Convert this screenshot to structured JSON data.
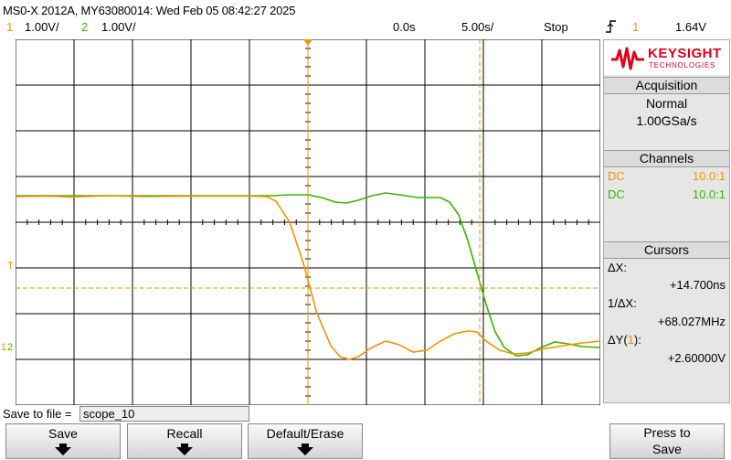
{
  "header": {
    "title": "MS0-X 2012A, MY63080014: Wed Feb 05 08:42:27 2025",
    "ch1_num": "1",
    "ch1_scale": "1.00V/",
    "ch2_num": "2",
    "ch2_scale": "1.00V/",
    "time_delay": "0.0s",
    "time_scale": "5.00s/",
    "run_state": "Stop",
    "trigger_icon": "trigger-edge-icon",
    "trigger_ch": "1",
    "trigger_level": "1.64V"
  },
  "colors": {
    "ch1": "#f29400",
    "ch2": "#3cb400",
    "grid": "#000000"
  },
  "markers": {
    "trigger_level": "T",
    "ch1_ground": "1",
    "ch2_ground": "2"
  },
  "side_panel": {
    "logo_name": "KEYSIGHT",
    "logo_sub": "TECHNOLOGIES",
    "acquisition_title": "Acquisition",
    "acquisition_mode": "Normal",
    "acquisition_rate": "1.00GSa/s",
    "channels_title": "Channels",
    "channels": [
      {
        "coupling": "DC",
        "probe": "10.0:1"
      },
      {
        "coupling": "DC",
        "probe": "10.0:1"
      }
    ],
    "cursors_title": "Cursors",
    "dx_label": "ΔX:",
    "dx_value": "+14.700ns",
    "inv_dx_label": "1/ΔX:",
    "inv_dx_value": "+68.027MHz",
    "dy_label_pre": "ΔY(",
    "dy_label_ch": "1",
    "dy_label_post": "):",
    "dy_value": "+2.60000V"
  },
  "save": {
    "label": "Save to file =",
    "filename": "scope_10"
  },
  "softkeys": {
    "save": "Save",
    "recall": "Recall",
    "default_erase": "Default/Erase",
    "press_to": "Press to",
    "save2": "Save"
  }
}
